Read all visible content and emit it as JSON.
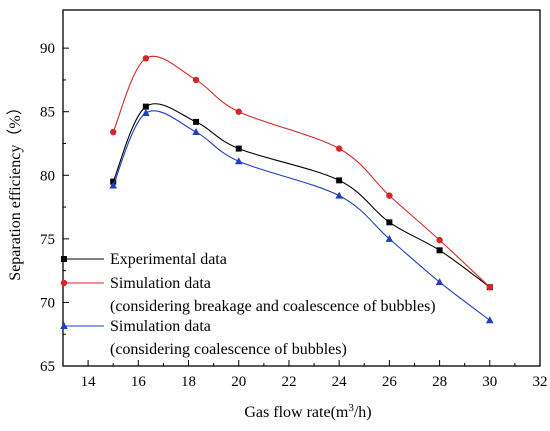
{
  "chart_data": {
    "type": "line",
    "title": "",
    "xlabel": "Gas flow rate(m3/h)",
    "xlabel_parts": {
      "before": "Gas flow rate(m",
      "sup": "3",
      "after": "/h)"
    },
    "ylabel": "Separation efficiency（%）",
    "xlim": [
      13,
      32
    ],
    "ylim": [
      65,
      93
    ],
    "xticks": [
      14,
      16,
      18,
      20,
      22,
      24,
      26,
      28,
      30,
      32
    ],
    "yticks": [
      65,
      70,
      75,
      80,
      85,
      90
    ],
    "grid": false,
    "legend_position": "bottom-left",
    "series": [
      {
        "name": "Experimental data",
        "color": "#000000",
        "marker": "square",
        "x": [
          15,
          16.3,
          18.3,
          20,
          24,
          26,
          28,
          30
        ],
        "y": [
          79.5,
          85.4,
          84.2,
          82.1,
          79.6,
          76.3,
          74.1,
          71.2
        ]
      },
      {
        "name": "Simulation data",
        "name_line2": "(considering breakage and coalescence of bubbles)",
        "color": "#d62728",
        "marker": "circle",
        "x": [
          15,
          16.3,
          18.3,
          20,
          24,
          26,
          28,
          30
        ],
        "y": [
          83.4,
          89.2,
          87.5,
          85.0,
          82.1,
          78.4,
          74.9,
          71.2
        ]
      },
      {
        "name": "Simulation data",
        "name_line2": "(considering coalescence of bubbles)",
        "color": "#1f3fbf",
        "marker": "triangle",
        "x": [
          15,
          16.3,
          18.3,
          20,
          24,
          26,
          28,
          30
        ],
        "y": [
          79.2,
          84.9,
          83.4,
          81.1,
          78.4,
          75.0,
          71.6,
          68.6
        ]
      }
    ]
  }
}
